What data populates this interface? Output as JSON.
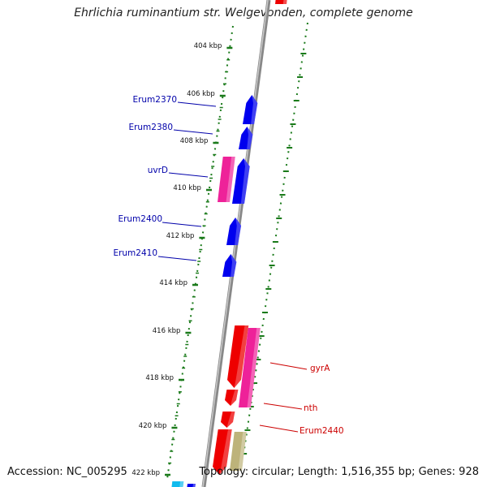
{
  "title": "Ehrlichia ruminantium str. Welgevonden, complete genome",
  "footer": {
    "accession": "Accession: NC_005295",
    "summary": "Topology: circular; Length: 1,516,355 bp; Genes: 928"
  },
  "scale_labels": [
    "404 kbp",
    "406 kbp",
    "408 kbp",
    "410 kbp",
    "412 kbp",
    "414 kbp",
    "416 kbp",
    "418 kbp",
    "420 kbp",
    "422 kbp"
  ],
  "gene_labels": [
    {
      "name": "Erum2370",
      "color": "#0000aa"
    },
    {
      "name": "Erum2380",
      "color": "#0000aa"
    },
    {
      "name": "uvrD",
      "color": "#0000aa"
    },
    {
      "name": "Erum2400",
      "color": "#0000aa"
    },
    {
      "name": "Erum2410",
      "color": "#0000aa"
    },
    {
      "name": "gyrA",
      "color": "#cc0000"
    },
    {
      "name": "nth",
      "color": "#cc0000"
    },
    {
      "name": "Erum2440",
      "color": "#cc0000"
    }
  ],
  "colors": {
    "forward_strand": "#0000ee",
    "reverse_strand": "#ee0000",
    "magenta": "#ee2299",
    "khaki": "#bdb37a",
    "cyan": "#11bbee",
    "backbone": "#888888",
    "ticks": "#1a7a1a"
  }
}
